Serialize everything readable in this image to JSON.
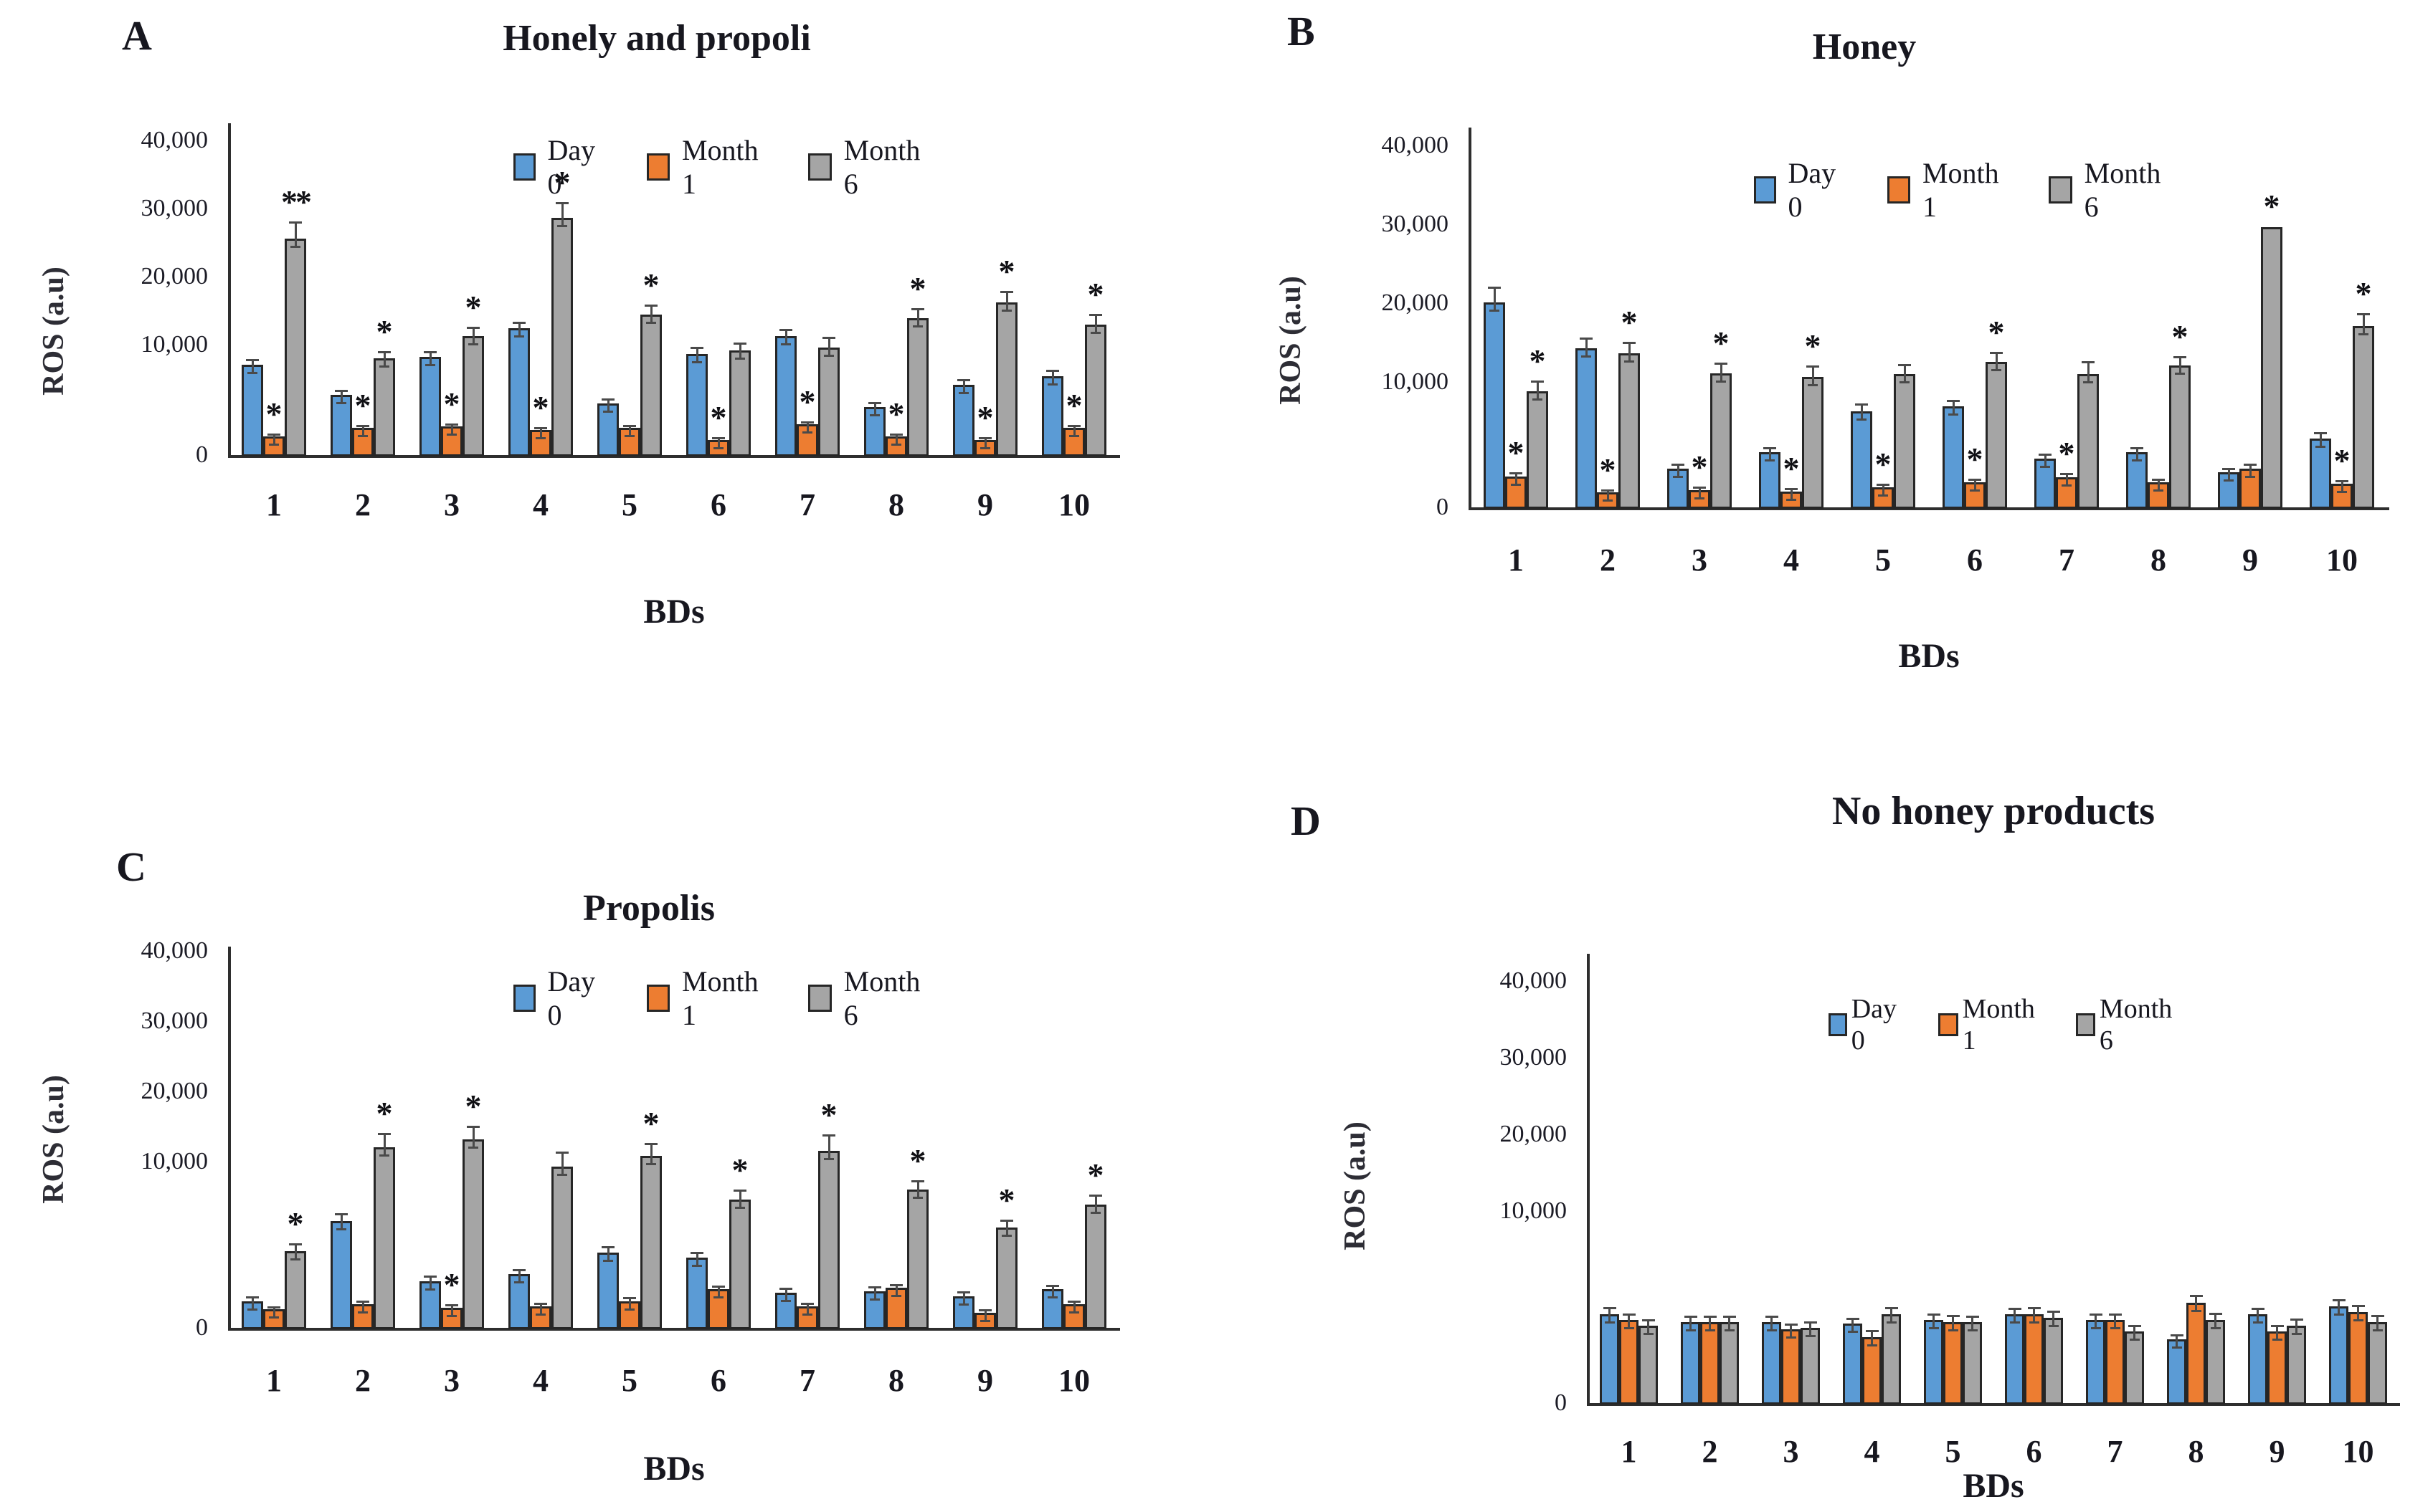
{
  "figure": {
    "background": "#ffffff",
    "series_colors": {
      "day0": "#5B9BD5",
      "month1": "#ED7D31",
      "month6": "#A5A5A5"
    },
    "bar_outline_color": "#262626",
    "error_bar_color": "#4a4a4a",
    "text_color": "#17171f",
    "significance_symbol": "*",
    "legend_labels": [
      "Day 0",
      "Month 1",
      "Month 6"
    ]
  },
  "chart_data": [
    {
      "id": "A",
      "panel_letter": "A",
      "type": "bar",
      "title": "Honely and propoli",
      "xlabel": "BDs",
      "ylabel": "ROS (a.u)",
      "categories": [
        "1",
        "2",
        "3",
        "4",
        "5",
        "6",
        "7",
        "8",
        "9",
        "10"
      ],
      "ytick_labels": [
        "0",
        "10,000",
        "20,000",
        "30,000",
        "40,000"
      ],
      "ytick_values": [
        0,
        10000,
        20000,
        30000,
        40000
      ],
      "ylim": [
        0,
        40000
      ],
      "axis_note": "y-axis segment 0-10,000 visually stretched ~1.6x vs upper segments",
      "legend": [
        "Day 0",
        "Month 1",
        "Month 6"
      ],
      "legend_position": "top-right-inside",
      "series": [
        {
          "name": "Day 0",
          "key": "day0",
          "values": [
            8300,
            5600,
            9000,
            12600,
            4800,
            9300,
            11500,
            4500,
            6500,
            7300
          ],
          "errors": [
            400,
            300,
            400,
            500,
            300,
            500,
            500,
            300,
            400,
            400
          ],
          "sig": [
            "",
            "",
            "",
            "",
            "",
            "",
            "",
            "",
            "",
            ""
          ]
        },
        {
          "name": "Month 1",
          "key": "month1",
          "values": [
            1800,
            2600,
            2700,
            2400,
            2600,
            1500,
            2900,
            1800,
            1500,
            2600
          ],
          "errors": [
            150,
            150,
            150,
            150,
            150,
            120,
            150,
            150,
            120,
            150
          ],
          "sig": [
            "*",
            "*",
            "*",
            "*",
            "",
            "*",
            "*",
            "*",
            "*",
            "*"
          ]
        },
        {
          "name": "Month 6",
          "key": "month6",
          "values": [
            25800,
            8900,
            11500,
            28800,
            14600,
            9600,
            9900,
            14100,
            16400,
            13200
          ],
          "errors": [
            1400,
            500,
            700,
            1300,
            800,
            600,
            800,
            800,
            900,
            800
          ],
          "sig": [
            "**",
            "*",
            "*",
            "*",
            "*",
            "",
            "",
            "*",
            "*",
            "*"
          ]
        }
      ]
    },
    {
      "id": "B",
      "panel_letter": "B",
      "type": "bar",
      "title": "Honey",
      "xlabel": "BDs",
      "ylabel": "ROS (a.u)",
      "categories": [
        "1",
        "2",
        "3",
        "4",
        "5",
        "6",
        "7",
        "8",
        "9",
        "10"
      ],
      "ytick_labels": [
        "0",
        "10,000",
        "20,000",
        "30,000",
        "40,000"
      ],
      "ytick_values": [
        0,
        10000,
        20000,
        30000,
        40000
      ],
      "ylim": [
        0,
        40000
      ],
      "axis_note": "y-axis segment 0-10,000 visually stretched ~1.6x vs upper segments",
      "legend": [
        "Day 0",
        "Month 1",
        "Month 6"
      ],
      "legend_position": "top-right-inside",
      "series": [
        {
          "name": "Day 0",
          "key": "day0",
          "values": [
            20300,
            14500,
            3200,
            4500,
            7800,
            8200,
            4000,
            4500,
            2900,
            5600
          ],
          "errors": [
            1100,
            700,
            300,
            300,
            500,
            400,
            300,
            300,
            250,
            400
          ],
          "sig": [
            "",
            "",
            "",
            "",
            "",
            "",
            "",
            "",
            "",
            ""
          ]
        },
        {
          "name": "Month 1",
          "key": "month1",
          "values": [
            2600,
            1300,
            1500,
            1400,
            1700,
            2100,
            2500,
            2100,
            3200,
            2000
          ],
          "errors": [
            200,
            150,
            150,
            150,
            200,
            200,
            250,
            200,
            300,
            200
          ],
          "sig": [
            "*",
            "*",
            "*",
            "*",
            "*",
            "*",
            "*",
            "",
            "",
            "*"
          ]
        },
        {
          "name": "Month 6",
          "key": "month6",
          "values": [
            9400,
            13800,
            11300,
            10800,
            11200,
            12700,
            11200,
            12300,
            29800,
            17300
          ],
          "errors": [
            700,
            800,
            700,
            800,
            700,
            700,
            900,
            600,
            0,
            900
          ],
          "sig": [
            "*",
            "*",
            "*",
            "*",
            "",
            "*",
            "",
            "*",
            "*",
            "*"
          ]
        }
      ]
    },
    {
      "id": "C",
      "panel_letter": "C",
      "type": "bar",
      "title": "Propolis",
      "xlabel": "BDs",
      "ylabel": "ROS (a.u)",
      "categories": [
        "1",
        "2",
        "3",
        "4",
        "5",
        "6",
        "7",
        "8",
        "9",
        "10"
      ],
      "ytick_labels": [
        "0",
        "10,000",
        "20,000",
        "30,000",
        "40,000"
      ],
      "ytick_values": [
        0,
        10000,
        20000,
        30000,
        40000
      ],
      "ylim": [
        0,
        40000
      ],
      "axis_note": "y-axis segment 0-10,000 visually stretched ~2.4x vs upper segments",
      "legend": [
        "Day 0",
        "Month 1",
        "Month 6"
      ],
      "legend_position": "top-right-inside",
      "series": [
        {
          "name": "Day 0",
          "key": "day0",
          "values": [
            1700,
            6500,
            2900,
            3300,
            4600,
            4300,
            2200,
            2300,
            2000,
            2400
          ],
          "errors": [
            200,
            400,
            250,
            250,
            300,
            250,
            200,
            200,
            200,
            200
          ],
          "sig": [
            "",
            "",
            "",
            "",
            "",
            "",
            "",
            "",
            "",
            ""
          ]
        },
        {
          "name": "Month 1",
          "key": "month1",
          "values": [
            1200,
            1500,
            1300,
            1400,
            1700,
            2400,
            1400,
            2500,
            1000,
            1500
          ],
          "errors": [
            100,
            150,
            120,
            130,
            150,
            150,
            120,
            150,
            100,
            130
          ],
          "sig": [
            "",
            "",
            "*",
            "",
            "",
            "",
            "",
            "",
            "",
            ""
          ]
        },
        {
          "name": "Month 6",
          "key": "month6",
          "values": [
            4700,
            12200,
            13400,
            9800,
            11000,
            7800,
            11700,
            8400,
            6100,
            7500
          ],
          "errors": [
            400,
            800,
            700,
            800,
            700,
            500,
            900,
            500,
            400,
            500
          ],
          "sig": [
            "*",
            "*",
            "*",
            "",
            "*",
            "*",
            "*",
            "*",
            "*",
            "*"
          ]
        }
      ]
    },
    {
      "id": "D",
      "panel_letter": "D",
      "type": "bar",
      "title": "No honey products",
      "xlabel": "BDs",
      "ylabel": "ROS (a.u)",
      "categories": [
        "1",
        "2",
        "3",
        "4",
        "5",
        "6",
        "7",
        "8",
        "9",
        "10"
      ],
      "ytick_labels": [
        "0",
        "10,000",
        "20,000",
        "30,000",
        "40,000"
      ],
      "ytick_values": [
        0,
        10000,
        20000,
        30000,
        40000
      ],
      "ylim": [
        0,
        40000
      ],
      "axis_note": "y-axis segment 0-10,000 visually stretched ~2.5x vs upper segments",
      "legend": [
        "Day 0",
        "Month 1",
        "Month 6"
      ],
      "legend_position": "top-right-inside",
      "series": [
        {
          "name": "Day 0",
          "key": "day0",
          "values": [
            4700,
            4300,
            4300,
            4200,
            4400,
            4700,
            4400,
            3400,
            4700,
            5100
          ],
          "errors": [
            300,
            250,
            250,
            250,
            250,
            250,
            250,
            200,
            250,
            300
          ],
          "sig": [
            "",
            "",
            "",
            "",
            "",
            "",
            "",
            "",
            "",
            ""
          ]
        },
        {
          "name": "Month 1",
          "key": "month1",
          "values": [
            4400,
            4300,
            3900,
            3500,
            4300,
            4700,
            4400,
            5300,
            3800,
            4800
          ],
          "errors": [
            250,
            250,
            250,
            300,
            300,
            300,
            250,
            350,
            250,
            300
          ],
          "sig": [
            "",
            "",
            "",
            "",
            "",
            "",
            "",
            "",
            "",
            ""
          ]
        },
        {
          "name": "Month 6",
          "key": "month6",
          "values": [
            4100,
            4300,
            4000,
            4700,
            4300,
            4500,
            3800,
            4400,
            4100,
            4300
          ],
          "errors": [
            250,
            250,
            250,
            300,
            250,
            300,
            250,
            300,
            300,
            300
          ],
          "sig": [
            "",
            "",
            "",
            "",
            "",
            "",
            "",
            "",
            "",
            ""
          ]
        }
      ]
    }
  ]
}
